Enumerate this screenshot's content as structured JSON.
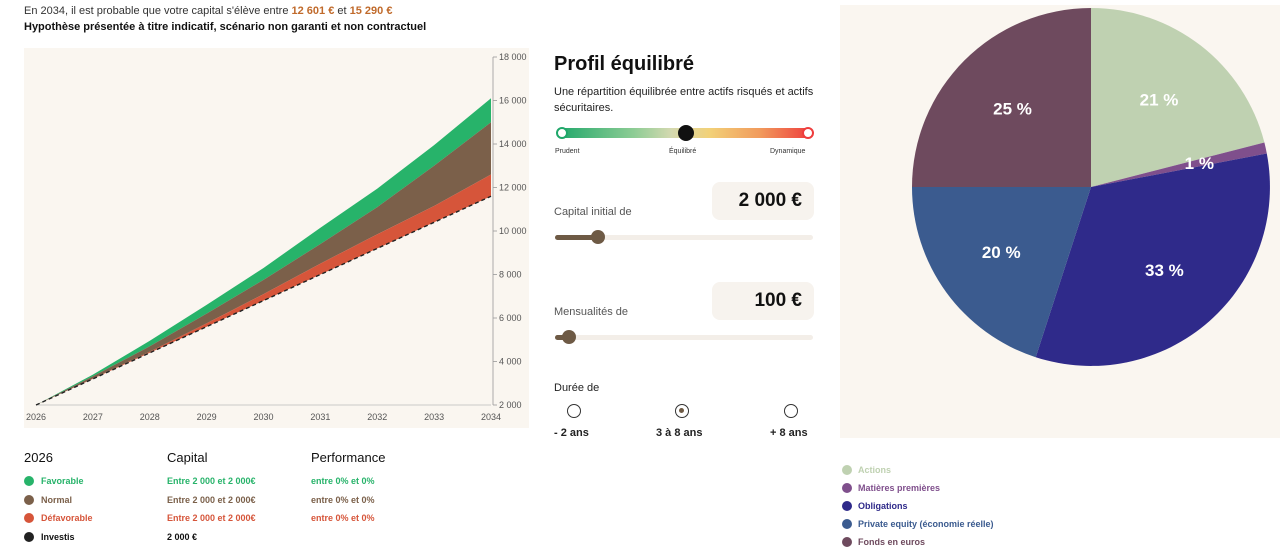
{
  "header": {
    "line1_prefix": "En 2034, il est probable que votre capital s'élève entre",
    "low_amount": "12 601 €",
    "connector": "et",
    "high_amount": "15 290 €",
    "disclaimer": "Hypothèse présentée à titre indicatif, scénario non garanti et non contractuel"
  },
  "chart_data": [
    {
      "type": "area",
      "x": [
        2026,
        2027,
        2028,
        2029,
        2030,
        2031,
        2032,
        2033,
        2034
      ],
      "xlim": [
        2026,
        2034
      ],
      "ylim": [
        2000,
        18000
      ],
      "yticks": [
        "2 000",
        "4 000",
        "6 000",
        "8 000",
        "10 000",
        "12 000",
        "14 000",
        "16 000",
        "18 000"
      ],
      "ytick_values": [
        2000,
        4000,
        6000,
        8000,
        10000,
        12000,
        14000,
        16000,
        18000
      ],
      "xticks": [
        "2026",
        "2027",
        "2028",
        "2029",
        "2030",
        "2031",
        "2032",
        "2033",
        "2034"
      ],
      "y_axis_side": "right",
      "series": [
        {
          "name": "Favorable",
          "color": "#27b36a",
          "values": [
            2000,
            3400,
            4950,
            6600,
            8300,
            10150,
            11950,
            13950,
            16100
          ]
        },
        {
          "name": "Normal",
          "color": "#7b604a",
          "values": [
            2000,
            3320,
            4700,
            6200,
            7750,
            9400,
            11100,
            13000,
            15000
          ]
        },
        {
          "name": "Défavorable",
          "color": "#d6553a",
          "values": [
            2000,
            3220,
            4450,
            5750,
            7100,
            8500,
            9850,
            11150,
            12600
          ]
        },
        {
          "name": "Investis",
          "color": "#222222",
          "dashed": true,
          "values": [
            2000,
            3200,
            4400,
            5600,
            6800,
            8000,
            9200,
            10400,
            11600
          ]
        }
      ]
    },
    {
      "type": "pie",
      "labels": [
        "Actions",
        "Matières premières",
        "Obligations",
        "Private equity (économie réelle)",
        "Fonds en euros"
      ],
      "values": [
        21,
        1,
        33,
        20,
        25
      ],
      "value_labels": [
        "21 %",
        "1 %",
        "33 %",
        "20 %",
        "25 %"
      ],
      "colors": [
        "#bfd1b1",
        "#7f4f8c",
        "#2f2a8a",
        "#3b5b8f",
        "#6e4a5e"
      ]
    }
  ],
  "table": {
    "year_header": "2026",
    "capital_header": "Capital",
    "performance_header": "Performance",
    "rows": [
      {
        "name": "Favorable",
        "color": "#27b36a",
        "capital": "Entre 2 000 et 2 000€",
        "performance": "entre 0% et 0%"
      },
      {
        "name": "Normal",
        "color": "#7b604a",
        "capital": "Entre 2 000 et 2 000€",
        "performance": "entre 0% et 0%"
      },
      {
        "name": "Défavorable",
        "color": "#d6553a",
        "capital": "Entre 2 000 et 2 000€",
        "performance": "entre 0% et 0%"
      },
      {
        "name": "Investis",
        "color": "#222222",
        "capital": "2 000 €",
        "performance": ""
      }
    ]
  },
  "profile": {
    "title": "Profil équilibré",
    "description": "Une répartition équilibrée entre actifs risqués et actifs sécuritaires.",
    "risk_labels": [
      "Prudent",
      "Équilibré",
      "Dynamique"
    ],
    "risk_level": 0.5,
    "capital_label": "Capital initial de",
    "capital_value": "2 000 €",
    "capital_slider_fraction": 0.15,
    "monthly_label": "Mensualités de",
    "monthly_value": "100 €",
    "monthly_slider_fraction": 0.04,
    "duration_label": "Durée de",
    "durations": [
      {
        "label": "- 2 ans",
        "selected": false
      },
      {
        "label": "3 à 8 ans",
        "selected": true
      },
      {
        "label": "+ 8 ans",
        "selected": false
      }
    ]
  },
  "colors": {
    "accent_amount": "#c06a2b",
    "slider": "#6e5a45",
    "panel_bg": "#faf6f0"
  }
}
